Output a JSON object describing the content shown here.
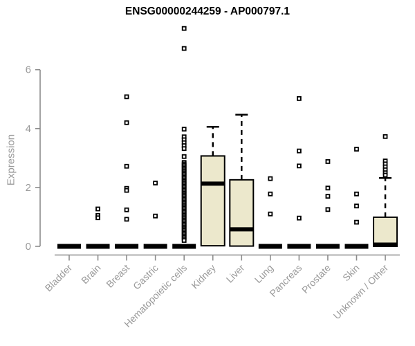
{
  "chart_data": {
    "type": "boxplot",
    "title": "ENSG00000244259 - AP000797.1",
    "ylabel": "Expression",
    "xlabel": "",
    "ylim": [
      0,
      7.6
    ],
    "yticks": [
      0,
      2,
      4,
      6
    ],
    "grid": false,
    "legend": false,
    "categories": [
      "Bladder",
      "Brain",
      "Breast",
      "Gastric",
      "Hematopoietic cells",
      "Kidney",
      "Liver",
      "Lung",
      "Pancreas",
      "Prostate",
      "Skin",
      "Unknown / Other"
    ],
    "boxes": [
      {
        "category": "Bladder",
        "q1": 0,
        "median": 0,
        "q3": 0,
        "whisker_low": 0,
        "whisker_high": 0,
        "outliers": []
      },
      {
        "category": "Brain",
        "q1": 0,
        "median": 0,
        "q3": 0,
        "whisker_low": 0,
        "whisker_high": 0,
        "outliers": [
          1.27,
          1.05,
          0.97
        ]
      },
      {
        "category": "Breast",
        "q1": 0,
        "median": 0,
        "q3": 0,
        "whisker_low": 0,
        "whisker_high": 0,
        "outliers": [
          5.08,
          4.2,
          2.72,
          1.97,
          1.9,
          1.24,
          0.92
        ]
      },
      {
        "category": "Gastric",
        "q1": 0,
        "median": 0,
        "q3": 0,
        "whisker_low": 0,
        "whisker_high": 0,
        "outliers": [
          2.15,
          1.03
        ]
      },
      {
        "category": "Hematopoietic cells",
        "q1": 0,
        "median": 0,
        "q3": 0,
        "whisker_low": 0,
        "whisker_high": 0,
        "outliers": [
          7.4,
          6.72,
          3.98,
          3.72,
          3.62,
          3.52,
          3.42,
          3.32,
          3.05,
          2.85,
          2.8,
          2.75,
          2.7,
          2.65,
          2.6,
          2.55,
          2.5,
          2.45,
          2.4,
          2.35,
          2.3,
          2.25,
          2.2,
          2.15,
          2.1,
          2.05,
          2.0,
          1.95,
          1.9,
          1.85,
          1.8,
          1.75,
          1.7,
          1.65,
          1.6,
          1.55,
          1.5,
          1.45,
          1.4,
          1.35,
          1.3,
          1.25,
          1.2,
          1.15,
          1.1,
          1.05,
          1.0,
          0.95,
          0.9,
          0.85,
          0.8,
          0.75,
          0.7,
          0.65,
          0.6,
          0.55,
          0.5,
          0.45,
          0.4,
          0.35,
          0.3,
          0.25,
          0.2
        ]
      },
      {
        "category": "Kidney",
        "q1": 0.02,
        "median": 2.13,
        "q3": 3.07,
        "whisker_low": 0.02,
        "whisker_high": 4.06,
        "outliers": []
      },
      {
        "category": "Liver",
        "q1": 0.01,
        "median": 0.58,
        "q3": 2.26,
        "whisker_low": 0.01,
        "whisker_high": 4.47,
        "outliers": []
      },
      {
        "category": "Lung",
        "q1": 0,
        "median": 0,
        "q3": 0,
        "whisker_low": 0,
        "whisker_high": 0,
        "outliers": [
          2.3,
          1.78,
          1.1
        ]
      },
      {
        "category": "Pancreas",
        "q1": 0,
        "median": 0,
        "q3": 0,
        "whisker_low": 0,
        "whisker_high": 0,
        "outliers": [
          5.02,
          3.24,
          2.73,
          0.96
        ]
      },
      {
        "category": "Prostate",
        "q1": 0,
        "median": 0,
        "q3": 0,
        "whisker_low": 0,
        "whisker_high": 0,
        "outliers": [
          2.88,
          1.98,
          1.7,
          1.25
        ]
      },
      {
        "category": "Skin",
        "q1": 0,
        "median": 0,
        "q3": 0,
        "whisker_low": 0,
        "whisker_high": 0,
        "outliers": [
          3.3,
          1.78,
          1.37,
          0.82
        ]
      },
      {
        "category": "Unknown / Other",
        "q1": 0,
        "median": 0.06,
        "q3": 0.99,
        "whisker_low": 0,
        "whisker_high": 2.32,
        "outliers": [
          3.73,
          2.9,
          2.8,
          2.7,
          2.6,
          2.5,
          2.42
        ]
      }
    ],
    "colors": {
      "box_fill": "#ece8cc",
      "box_border": "#000000",
      "median": "#000000",
      "whisker": "#000000",
      "outlier_fill": "#ffffff",
      "axis_line": "#8c8c8c",
      "tick_label": "#9a9a9a",
      "title": "#000000",
      "background": "#ffffff"
    }
  }
}
